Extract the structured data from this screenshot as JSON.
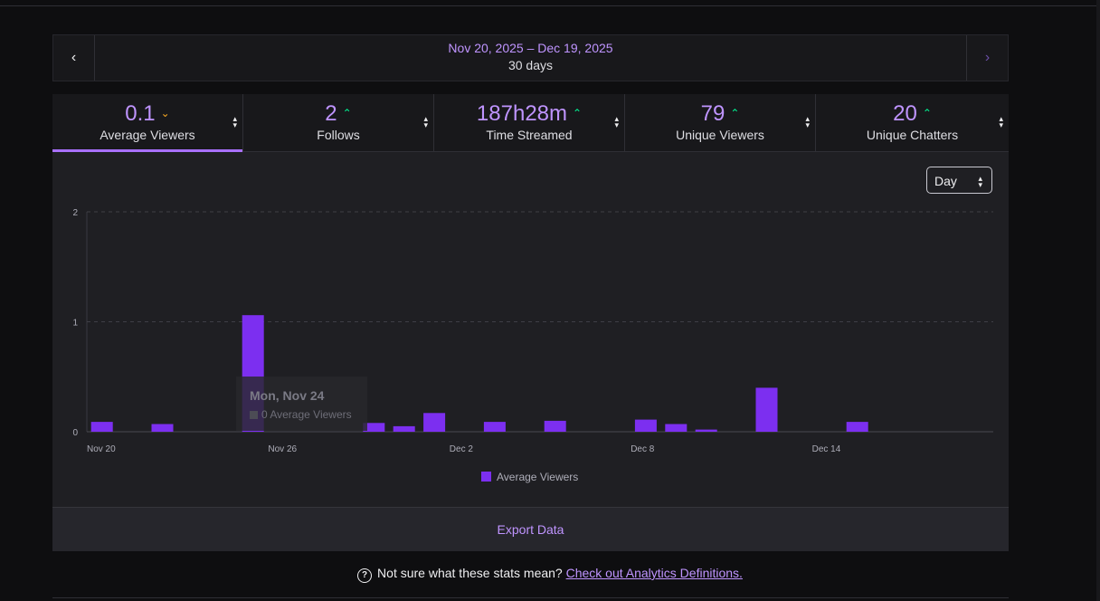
{
  "date_range": {
    "range": "Nov 20, 2025 – Dec 19, 2025",
    "days": "30 days",
    "prev_icon": "‹",
    "next_icon": "›"
  },
  "metrics": [
    {
      "value": "0.1",
      "label": "Average Viewers",
      "trend": "down",
      "trend_icon": "⌄",
      "active": true
    },
    {
      "value": "2",
      "label": "Follows",
      "trend": "up",
      "trend_icon": "⌃",
      "active": false
    },
    {
      "value": "187h28m",
      "label": "Time Streamed",
      "trend": "up",
      "trend_icon": "⌃",
      "active": false
    },
    {
      "value": "79",
      "label": "Unique Viewers",
      "trend": "up",
      "trend_icon": "⌃",
      "active": false
    },
    {
      "value": "20",
      "label": "Unique Chatters",
      "trend": "up",
      "trend_icon": "⌃",
      "active": false
    }
  ],
  "granularity": {
    "selected": "Day"
  },
  "tooltip": {
    "date": "Mon, Nov 24",
    "value_text": "0 Average Viewers"
  },
  "chart_data": {
    "type": "bar",
    "title": "",
    "xlabel": "",
    "ylabel": "",
    "ylim": [
      0,
      2
    ],
    "yticks": [
      0,
      1,
      2
    ],
    "x_tick_labels": [
      "Nov 20",
      "Nov 26",
      "Dec 2",
      "Dec 8",
      "Dec 14"
    ],
    "categories": [
      "Nov 20",
      "Nov 21",
      "Nov 22",
      "Nov 23",
      "Nov 24",
      "Nov 25",
      "Nov 26",
      "Nov 27",
      "Nov 28",
      "Nov 29",
      "Nov 30",
      "Dec 1",
      "Dec 2",
      "Dec 3",
      "Dec 4",
      "Dec 5",
      "Dec 6",
      "Dec 7",
      "Dec 8",
      "Dec 9",
      "Dec 10",
      "Dec 11",
      "Dec 12",
      "Dec 13",
      "Dec 14",
      "Dec 15",
      "Dec 16",
      "Dec 17",
      "Dec 18",
      "Dec 19"
    ],
    "series": [
      {
        "name": "Average Viewers",
        "color": "#7c2ff0",
        "values": [
          0.09,
          0,
          0.07,
          0,
          0,
          1.06,
          0,
          0,
          0,
          0.08,
          0.05,
          0.17,
          0,
          0.09,
          0,
          0.1,
          0,
          0,
          0.11,
          0.07,
          0.02,
          0,
          0.4,
          0,
          0,
          0.09,
          0,
          0,
          0,
          0
        ]
      }
    ],
    "legend": "bottom-center",
    "grid": true
  },
  "footer": {
    "export_label": "Export Data",
    "help_text": "Not sure what these stats mean?",
    "help_link": "Check out Analytics Definitions.",
    "help_icon": "?"
  }
}
